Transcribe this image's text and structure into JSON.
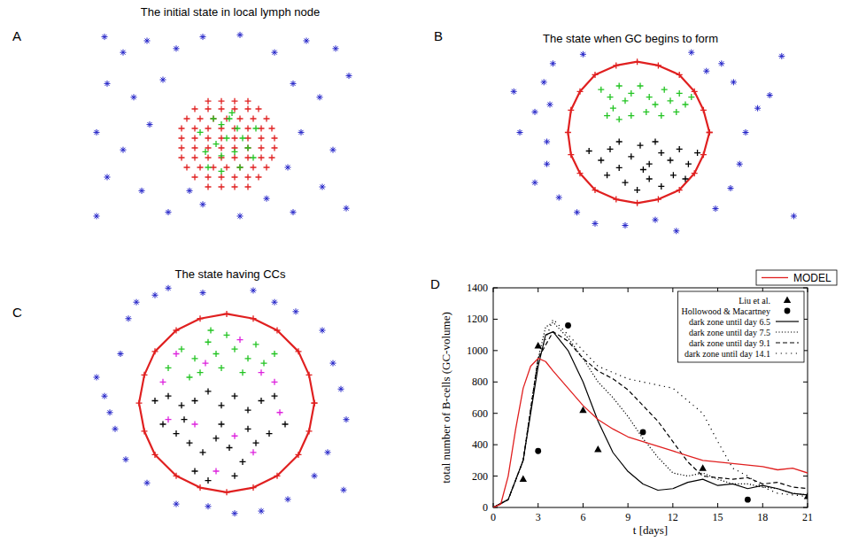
{
  "chart_data": [
    {
      "type": "scatter",
      "panel": "A",
      "title": "The initial state in local lymph node",
      "xlim": [
        0,
        100
      ],
      "ylim": [
        0,
        100
      ],
      "tick_labels": false,
      "series": [
        {
          "color": "#2424c8",
          "marker": "star",
          "x": [
            6,
            13,
            22,
            33,
            43,
            57,
            70,
            82,
            93,
            7,
            17,
            28,
            77,
            87,
            98,
            3,
            13,
            23,
            80,
            92,
            7,
            20,
            30,
            43,
            57,
            67,
            77,
            88,
            97,
            3,
            38,
            75
          ],
          "values": [
            97,
            89,
            95,
            91,
            97,
            98,
            89,
            95,
            91,
            73,
            66,
            75,
            73,
            66,
            77,
            48,
            39,
            52,
            48,
            39,
            25,
            18,
            7,
            11,
            5,
            14,
            7,
            20,
            9,
            5,
            18,
            30
          ]
        },
        {
          "color": "#e02020",
          "marker": "plus",
          "x": [
            45,
            50,
            55,
            60,
            40,
            45,
            50,
            55,
            60,
            64,
            37,
            42,
            47,
            52,
            57,
            62,
            67,
            35,
            40,
            45,
            50,
            55,
            60,
            65,
            69,
            35,
            40,
            45,
            50,
            55,
            60,
            65,
            70,
            35,
            40,
            45,
            50,
            55,
            60,
            65,
            70,
            35,
            40,
            45,
            50,
            55,
            60,
            65,
            69,
            37,
            42,
            47,
            52,
            57,
            62,
            67,
            40,
            45,
            50,
            55,
            60,
            64,
            45,
            50,
            55,
            60
          ],
          "values": [
            64,
            64,
            64,
            64,
            60,
            60,
            60,
            60,
            60,
            60,
            55,
            55,
            55,
            55,
            55,
            55,
            55,
            50,
            50,
            50,
            50,
            50,
            50,
            50,
            50,
            45,
            45,
            45,
            45,
            45,
            45,
            45,
            45,
            40,
            40,
            40,
            40,
            40,
            40,
            40,
            40,
            35,
            35,
            35,
            35,
            35,
            35,
            35,
            35,
            30,
            30,
            30,
            30,
            30,
            30,
            30,
            25,
            25,
            25,
            25,
            25,
            25,
            20,
            20,
            20,
            20
          ]
        },
        {
          "color": "#22c422",
          "marker": "plus",
          "x": [
            47,
            50,
            53,
            56,
            58,
            52,
            48,
            44,
            50,
            55,
            60,
            62,
            57,
            50,
            45,
            54,
            42,
            63
          ],
          "values": [
            55,
            52,
            55,
            50,
            45,
            45,
            42,
            38,
            36,
            38,
            40,
            35,
            30,
            28,
            30,
            58,
            48,
            50
          ]
        }
      ]
    },
    {
      "type": "scatter",
      "panel": "B",
      "title": "The state when GC begins to form",
      "xlim": [
        0,
        100
      ],
      "ylim": [
        0,
        100
      ],
      "tick_labels": false,
      "series": [
        {
          "color": "#2424c8",
          "marker": "star",
          "x": [
            3,
            5,
            10,
            13,
            16,
            14,
            14,
            10,
            18,
            24,
            30,
            40,
            50,
            57,
            70,
            75,
            78,
            80,
            84,
            76,
            72,
            92,
            96,
            88,
            15,
            26,
            62,
            67
          ],
          "values": [
            77,
            55,
            66,
            82,
            92,
            50,
            38,
            28,
            20,
            12,
            6,
            5,
            8,
            2,
            14,
            25,
            38,
            55,
            68,
            82,
            92,
            96,
            10,
            75,
            70,
            97,
            98,
            88
          ]
        },
        {
          "type": "line",
          "color": "#e02020",
          "marker": "plus",
          "line_style": "solid",
          "x": [
            68,
            66,
            63,
            58,
            51,
            44,
            37,
            30,
            25,
            22,
            21,
            22,
            25,
            30,
            37,
            44,
            51,
            58,
            63,
            66,
            68
          ],
          "values": [
            55,
            67,
            77,
            86,
            91,
            93,
            91,
            86,
            77,
            67,
            55,
            43,
            33,
            24,
            19,
            17,
            19,
            24,
            33,
            43,
            55
          ]
        },
        {
          "color": "#22c422",
          "marker": "plus",
          "x": [
            32,
            35,
            38,
            40,
            42,
            36,
            45,
            48,
            50,
            53,
            55,
            58,
            60,
            57,
            47,
            42,
            38,
            52,
            62,
            34
          ],
          "values": [
            78,
            74,
            80,
            72,
            76,
            68,
            80,
            74,
            70,
            78,
            72,
            76,
            70,
            66,
            66,
            64,
            62,
            64,
            74,
            64
          ]
        },
        {
          "color": "#000000",
          "marker": "plus",
          "x": [
            28,
            32,
            35,
            38,
            42,
            45,
            48,
            52,
            55,
            58,
            61,
            64,
            34,
            40,
            44,
            48,
            52,
            56,
            60,
            46,
            50,
            38
          ],
          "values": [
            45,
            40,
            46,
            36,
            42,
            48,
            38,
            44,
            40,
            46,
            38,
            44,
            32,
            28,
            24,
            30,
            26,
            32,
            30,
            35,
            50,
            50
          ]
        }
      ]
    },
    {
      "type": "scatter",
      "panel": "C",
      "title": "The state having CCs",
      "xlim": [
        0,
        100
      ],
      "ylim": [
        0,
        100
      ],
      "tick_labels": false,
      "series": [
        {
          "color": "#2424c8",
          "marker": "star",
          "x": [
            3,
            8,
            12,
            15,
            25,
            30,
            43,
            62,
            70,
            78,
            88,
            92,
            95,
            97,
            90,
            85,
            75,
            65,
            55,
            45,
            33,
            22,
            14,
            10,
            6,
            96,
            18
          ],
          "values": [
            60,
            45,
            70,
            85,
            95,
            98,
            96,
            97,
            92,
            88,
            80,
            66,
            55,
            42,
            28,
            18,
            8,
            3,
            2,
            5,
            6,
            15,
            25,
            38,
            52,
            12,
            92
          ]
        },
        {
          "type": "line",
          "color": "#e02020",
          "marker": "plus",
          "line_style": "solid",
          "x": [
            85,
            83,
            79,
            71,
            62,
            52,
            42,
            33,
            25,
            21,
            19,
            21,
            25,
            33,
            42,
            52,
            62,
            71,
            79,
            83,
            85
          ],
          "values": [
            49,
            61,
            71,
            80,
            85,
            87,
            85,
            80,
            71,
            61,
            49,
            37,
            27,
            18,
            13,
            11,
            13,
            18,
            27,
            37,
            49
          ]
        },
        {
          "color": "#22c422",
          "marker": "plus",
          "x": [
            35,
            40,
            45,
            48,
            52,
            55,
            60,
            63,
            66,
            58,
            50,
            42,
            38,
            30,
            70,
            46
          ],
          "values": [
            72,
            68,
            75,
            70,
            78,
            72,
            68,
            74,
            66,
            62,
            64,
            62,
            60,
            64,
            70,
            80
          ]
        },
        {
          "color": "#000000",
          "marker": "plus",
          "x": [
            25,
            30,
            35,
            40,
            45,
            50,
            55,
            60,
            65,
            70,
            28,
            33,
            38,
            43,
            48,
            53,
            58,
            63,
            68,
            74,
            40,
            45,
            55,
            36,
            50,
            60
          ],
          "values": [
            50,
            52,
            48,
            50,
            54,
            48,
            52,
            46,
            50,
            52,
            40,
            36,
            32,
            28,
            34,
            30,
            24,
            32,
            36,
            40,
            20,
            16,
            18,
            42,
            40,
            38
          ]
        },
        {
          "color": "#dd22dd",
          "marker": "plus",
          "x": [
            33,
            44,
            57,
            65,
            70,
            28,
            40,
            55,
            62,
            48,
            72,
            30
          ],
          "values": [
            70,
            66,
            76,
            62,
            58,
            58,
            40,
            35,
            28,
            20,
            45,
            42
          ]
        }
      ]
    },
    {
      "type": "line",
      "panel": "D",
      "xlabel": "t [days]",
      "ylabel": "total number of B-cells (GC-volume)",
      "xlim": [
        0,
        21
      ],
      "ylim": [
        0,
        1400
      ],
      "xticks": [
        0,
        3,
        6,
        9,
        12,
        15,
        18,
        21
      ],
      "yticks": [
        0,
        200,
        400,
        600,
        800,
        1000,
        1200,
        1400
      ],
      "legend": "top-right",
      "series": [
        {
          "name": "Liu et al.",
          "type": "scatter",
          "color": "#000000",
          "marker": "triangle",
          "x": [
            2,
            3,
            6,
            7,
            14,
            21
          ],
          "values": [
            180,
            1030,
            620,
            370,
            250,
            70
          ]
        },
        {
          "name": "Hollowood & Macartney",
          "type": "scatter",
          "color": "#000000",
          "marker": "circle",
          "x": [
            3,
            5,
            10,
            17
          ],
          "values": [
            360,
            1160,
            480,
            50
          ]
        },
        {
          "name": "dark zone until day 6.5",
          "type": "line",
          "color": "#000000",
          "line_style": "solid",
          "x": [
            0,
            1,
            2,
            3,
            3.5,
            4,
            5,
            6,
            7,
            8,
            9,
            10,
            11,
            12,
            13,
            14,
            15,
            16,
            17,
            18,
            19,
            20,
            21
          ],
          "values": [
            0,
            50,
            300,
            900,
            1100,
            1120,
            1000,
            800,
            550,
            350,
            230,
            150,
            110,
            120,
            160,
            180,
            140,
            150,
            120,
            140,
            120,
            90,
            80
          ]
        },
        {
          "name": "dark zone until day 7.5",
          "type": "line",
          "color": "#000000",
          "line_style": "dotted",
          "x": [
            0,
            1,
            2,
            3,
            3.5,
            4,
            5,
            6,
            7,
            8,
            9,
            10,
            11,
            12,
            13,
            14,
            15,
            16,
            17,
            18,
            19,
            20,
            21
          ],
          "values": [
            0,
            50,
            300,
            950,
            1150,
            1180,
            1080,
            950,
            800,
            700,
            580,
            440,
            320,
            220,
            200,
            220,
            180,
            150,
            150,
            130,
            120,
            90,
            80
          ]
        },
        {
          "name": "dark zone until day 9.1",
          "type": "line",
          "color": "#000000",
          "line_style": "dashed",
          "x": [
            0,
            1,
            2,
            3,
            4,
            5,
            6,
            7,
            8,
            9,
            10,
            11,
            12,
            13,
            14,
            15,
            16,
            17,
            18,
            19,
            20,
            21
          ],
          "values": [
            0,
            50,
            300,
            950,
            1120,
            1060,
            950,
            870,
            820,
            750,
            650,
            550,
            420,
            290,
            200,
            190,
            180,
            190,
            150,
            160,
            130,
            120
          ]
        },
        {
          "name": "dark zone until day 14.1",
          "type": "line",
          "color": "#000000",
          "line_style": "sparse-dotted",
          "x": [
            0,
            1,
            2,
            3,
            4,
            5,
            6,
            7,
            8,
            9,
            10,
            11,
            12,
            13,
            14,
            15,
            16,
            17,
            18,
            19,
            20,
            21
          ],
          "values": [
            0,
            50,
            300,
            950,
            1200,
            1100,
            1000,
            900,
            860,
            820,
            800,
            780,
            760,
            680,
            600,
            420,
            250,
            200,
            130,
            90,
            80,
            70
          ]
        },
        {
          "name": "MODEL",
          "type": "line",
          "color": "#e02020",
          "line_style": "solid",
          "x": [
            0,
            0.5,
            1,
            1.5,
            2,
            2.5,
            3,
            3.5,
            4,
            5,
            6,
            7,
            8,
            9,
            10,
            11,
            12,
            13,
            14,
            15,
            16,
            17,
            18,
            19,
            20,
            21
          ],
          "values": [
            0,
            20,
            200,
            500,
            760,
            900,
            950,
            930,
            870,
            760,
            650,
            560,
            500,
            450,
            420,
            390,
            360,
            330,
            300,
            290,
            280,
            270,
            260,
            240,
            250,
            220
          ]
        }
      ]
    }
  ]
}
